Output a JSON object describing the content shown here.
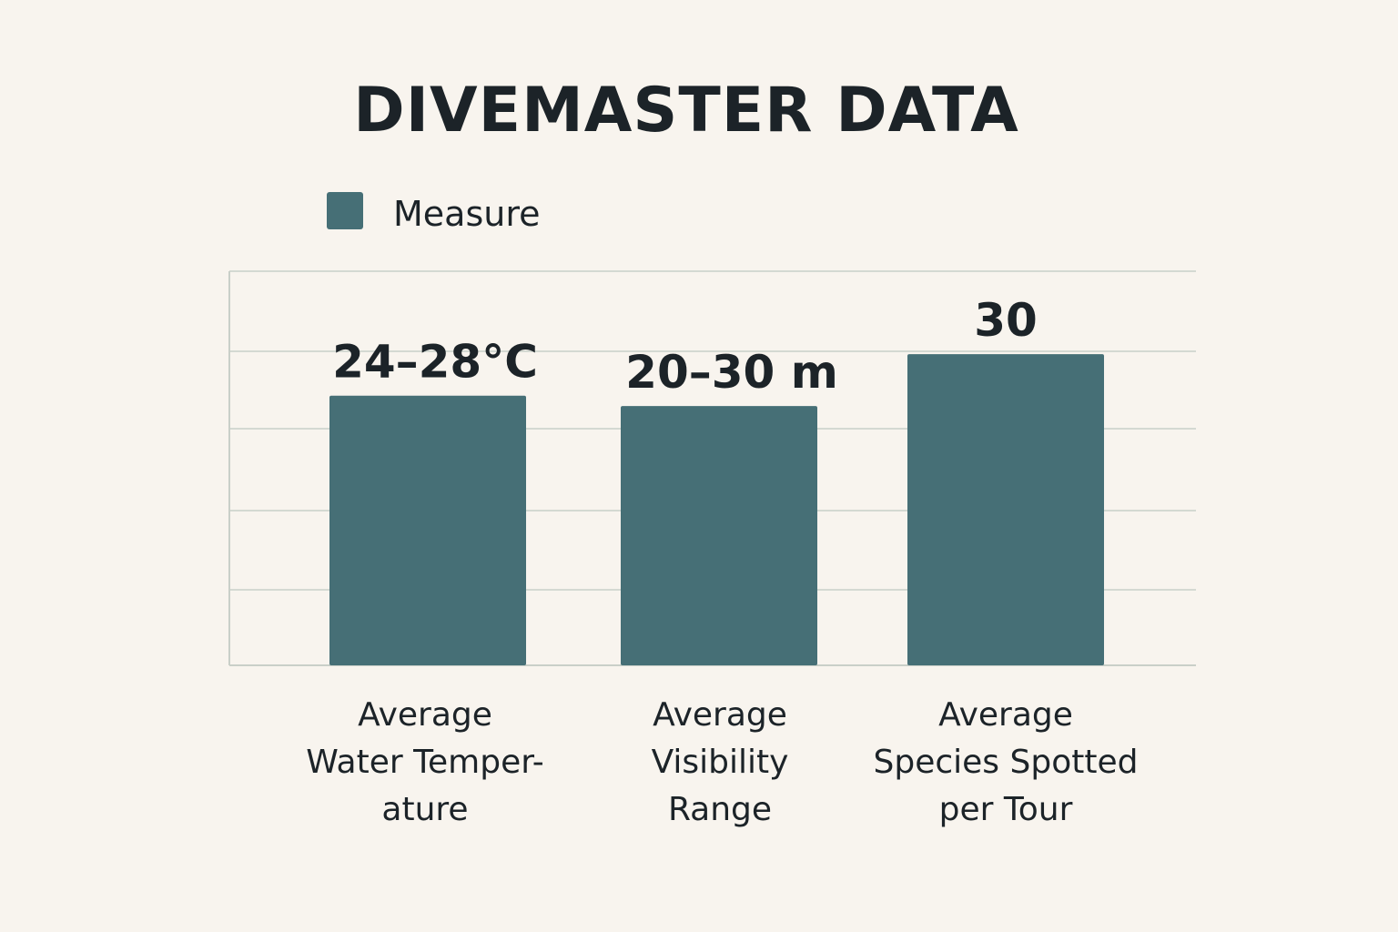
{
  "chart_data": {
    "type": "bar",
    "title": "DIVEMASTER DATA",
    "xlabel": "",
    "ylabel": "",
    "legend": {
      "position": "top-left",
      "entries": [
        "Measure"
      ]
    },
    "grid": true,
    "categories": [
      [
        "Average",
        "Water Temper-",
        "ature"
      ],
      [
        "Average",
        "Visibility",
        "Range"
      ],
      [
        "Average",
        "Species Spotted",
        "per Tour"
      ]
    ],
    "series": [
      {
        "name": "Measure",
        "values": [
          26,
          25,
          30
        ],
        "data_labels": [
          "24–28°C",
          "20–30 m",
          "30"
        ]
      }
    ],
    "ylim": [
      0,
      38
    ],
    "colors": {
      "bar": "#466f76",
      "text": "#1c2328",
      "grid": "#d4d9d2",
      "background": "#f8f4ee"
    }
  }
}
